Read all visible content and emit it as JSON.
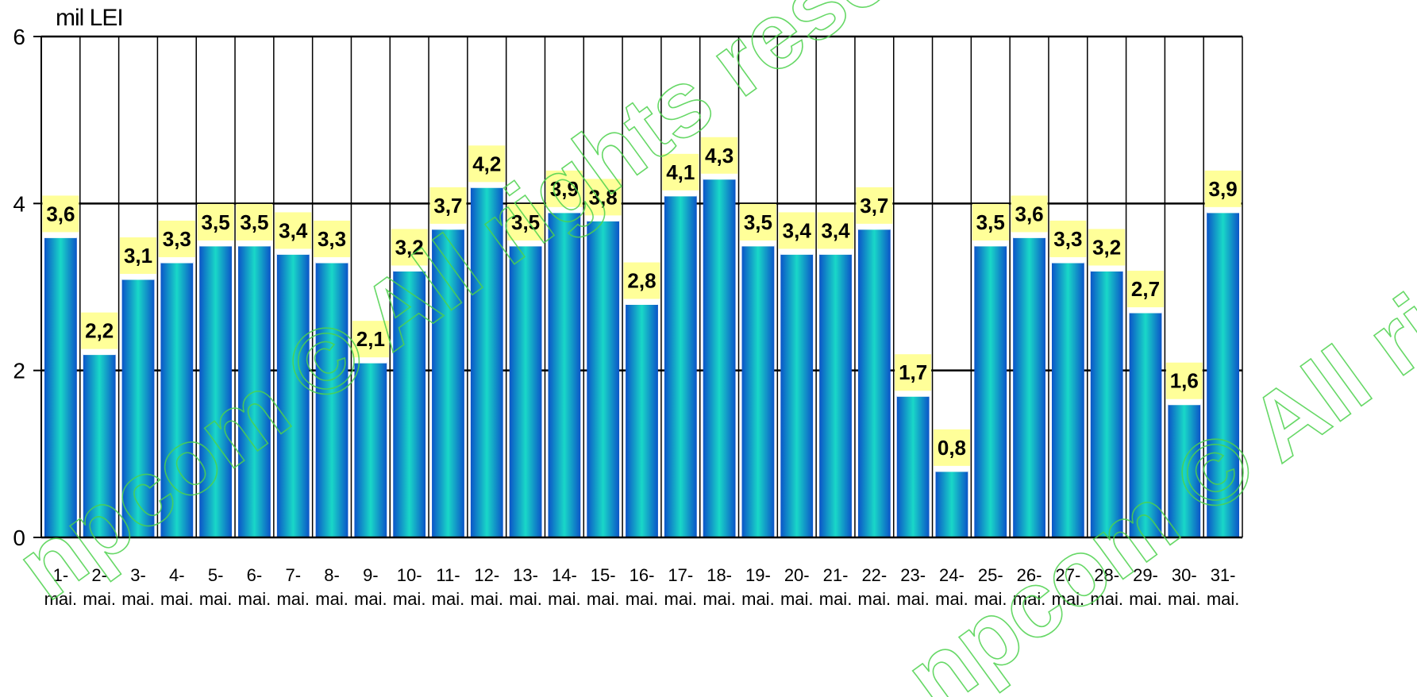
{
  "watermark_text": "npcom © All rights reserved",
  "chart_data": {
    "type": "bar",
    "unit_label": "mil LEI",
    "title": "",
    "xlabel": "",
    "ylabel": "",
    "ylim": [
      0,
      6
    ],
    "yticks": [
      0,
      2,
      4,
      6
    ],
    "grid": "horizontal at 2, 4, 6 and vertical separators",
    "categories": [
      "1-mai.",
      "2-mai.",
      "3-mai.",
      "4-mai.",
      "5-mai.",
      "6-mai.",
      "7-mai.",
      "8-mai.",
      "9-mai.",
      "10-mai.",
      "11-mai.",
      "12-mai.",
      "13-mai.",
      "14-mai.",
      "15-mai.",
      "16-mai.",
      "17-mai.",
      "18-mai.",
      "19-mai.",
      "20-mai.",
      "21-mai.",
      "22-mai.",
      "23-mai.",
      "24-mai.",
      "25-mai.",
      "26-mai.",
      "27-mai.",
      "28-mai.",
      "29-mai.",
      "30-mai.",
      "31-mai."
    ],
    "values": [
      3.6,
      2.2,
      3.1,
      3.3,
      3.5,
      3.5,
      3.4,
      3.3,
      2.1,
      3.2,
      3.7,
      4.2,
      3.5,
      3.9,
      3.8,
      2.8,
      4.1,
      4.3,
      3.5,
      3.4,
      3.4,
      3.7,
      1.7,
      0.8,
      3.5,
      3.6,
      3.3,
      3.2,
      2.7,
      1.6,
      3.9
    ],
    "data_labels": [
      "3,6",
      "2,2",
      "3,1",
      "3,3",
      "3,5",
      "3,5",
      "3,4",
      "3,3",
      "2,1",
      "3,2",
      "3,7",
      "4,2",
      "3,5",
      "3,9",
      "3,8",
      "2,8",
      "4,1",
      "4,3",
      "3,5",
      "3,4",
      "3,4",
      "3,7",
      "1,7",
      "0,8",
      "3,5",
      "3,6",
      "3,3",
      "3,2",
      "2,7",
      "1,6",
      "3,9"
    ],
    "colors": {
      "bar_edge": "#0b54c8",
      "bar_center": "#19d8c8",
      "label_bg": "#ffff99",
      "grid": "#000000"
    }
  }
}
